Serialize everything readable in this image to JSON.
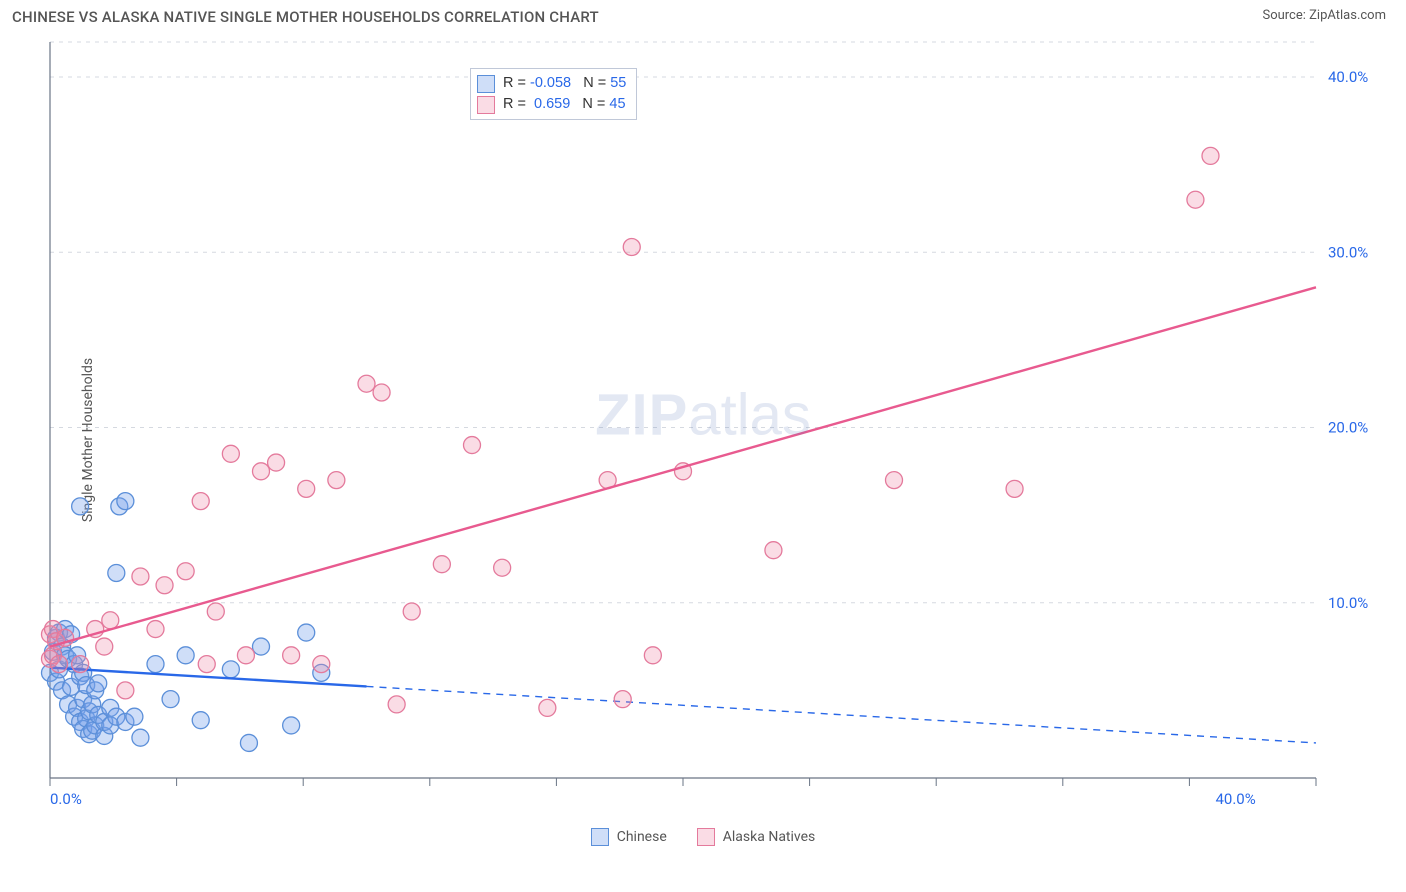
{
  "title": "CHINESE VS ALASKA NATIVE SINGLE MOTHER HOUSEHOLDS CORRELATION CHART",
  "source_label": "Source: ZipAtlas.com",
  "ylabel": "Single Mother Households",
  "watermark": {
    "strong": "ZIP",
    "rest": "atlas"
  },
  "chart": {
    "type": "scatter",
    "xlim": [
      0,
      42
    ],
    "ylim": [
      0,
      42
    ],
    "xtick_labels": {
      "0": "0.0%",
      "40": "40.0%"
    },
    "ytick_labels": [
      "10.0%",
      "20.0%",
      "30.0%",
      "40.0%"
    ],
    "ytick_values": [
      10,
      20,
      30,
      40
    ],
    "grid_x_values": [
      0,
      4.2,
      8.4,
      12.6,
      16.8,
      21.0,
      25.2,
      29.4,
      33.6,
      37.8,
      42.0
    ],
    "grid_color": "#d5d9e0",
    "axis_color": "#6a7485",
    "background_color": "#ffffff",
    "marker_radius": 8.5,
    "marker_stroke_width": 1.3,
    "series": [
      {
        "name": "Chinese",
        "fill": "rgba(118,161,234,0.35)",
        "stroke": "#5b8fd9",
        "points": [
          [
            0.0,
            6.0
          ],
          [
            0.1,
            7.2
          ],
          [
            0.2,
            5.5
          ],
          [
            0.2,
            8.0
          ],
          [
            0.3,
            8.3
          ],
          [
            0.3,
            6.2
          ],
          [
            0.4,
            7.5
          ],
          [
            0.4,
            5.0
          ],
          [
            0.5,
            7.0
          ],
          [
            0.5,
            8.5
          ],
          [
            0.6,
            6.8
          ],
          [
            0.6,
            4.2
          ],
          [
            0.7,
            5.2
          ],
          [
            0.7,
            8.2
          ],
          [
            0.8,
            3.5
          ],
          [
            0.8,
            6.5
          ],
          [
            0.9,
            4.0
          ],
          [
            0.9,
            7.0
          ],
          [
            1.0,
            5.8
          ],
          [
            1.0,
            3.2
          ],
          [
            1.0,
            15.5
          ],
          [
            1.1,
            2.8
          ],
          [
            1.1,
            4.5
          ],
          [
            1.1,
            6.0
          ],
          [
            1.2,
            3.4
          ],
          [
            1.2,
            5.3
          ],
          [
            1.3,
            2.5
          ],
          [
            1.3,
            3.8
          ],
          [
            1.4,
            4.2
          ],
          [
            1.4,
            2.7
          ],
          [
            1.5,
            5.0
          ],
          [
            1.5,
            3.0
          ],
          [
            1.6,
            3.6
          ],
          [
            1.6,
            5.4
          ],
          [
            1.8,
            2.4
          ],
          [
            1.8,
            3.2
          ],
          [
            2.0,
            3.0
          ],
          [
            2.0,
            4.0
          ],
          [
            2.2,
            11.7
          ],
          [
            2.2,
            3.5
          ],
          [
            2.3,
            15.5
          ],
          [
            2.5,
            15.8
          ],
          [
            2.5,
            3.2
          ],
          [
            2.8,
            3.5
          ],
          [
            3.0,
            2.3
          ],
          [
            3.5,
            6.5
          ],
          [
            4.0,
            4.5
          ],
          [
            4.5,
            7.0
          ],
          [
            5.0,
            3.3
          ],
          [
            6.0,
            6.2
          ],
          [
            6.6,
            2.0
          ],
          [
            7.0,
            7.5
          ],
          [
            8.0,
            3.0
          ],
          [
            8.5,
            8.3
          ],
          [
            9.0,
            6.0
          ]
        ],
        "regression": {
          "x1": 0.0,
          "y1": 6.3,
          "x2": 42.0,
          "y2": 2.0,
          "x_solid_end": 10.5
        },
        "line_color": "#2968e8"
      },
      {
        "name": "Alaska Natives",
        "fill": "rgba(238,140,170,0.30)",
        "stroke": "#e47a9c",
        "points": [
          [
            0.0,
            6.8
          ],
          [
            0.0,
            8.2
          ],
          [
            0.1,
            8.5
          ],
          [
            0.1,
            7.0
          ],
          [
            0.2,
            7.8
          ],
          [
            0.3,
            6.5
          ],
          [
            0.5,
            8.0
          ],
          [
            1.0,
            6.5
          ],
          [
            1.5,
            8.5
          ],
          [
            1.8,
            7.5
          ],
          [
            2.0,
            9.0
          ],
          [
            2.5,
            5.0
          ],
          [
            3.0,
            11.5
          ],
          [
            3.5,
            8.5
          ],
          [
            3.8,
            11.0
          ],
          [
            4.5,
            11.8
          ],
          [
            5.0,
            15.8
          ],
          [
            5.2,
            6.5
          ],
          [
            5.5,
            9.5
          ],
          [
            6.0,
            18.5
          ],
          [
            6.5,
            7.0
          ],
          [
            7.0,
            17.5
          ],
          [
            7.5,
            18.0
          ],
          [
            8.0,
            7.0
          ],
          [
            8.5,
            16.5
          ],
          [
            9.0,
            6.5
          ],
          [
            9.5,
            17.0
          ],
          [
            10.5,
            22.5
          ],
          [
            11.0,
            22.0
          ],
          [
            11.5,
            4.2
          ],
          [
            12.0,
            9.5
          ],
          [
            13.0,
            12.2
          ],
          [
            14.0,
            19.0
          ],
          [
            15.0,
            12.0
          ],
          [
            16.5,
            4.0
          ],
          [
            18.5,
            17.0
          ],
          [
            19.0,
            4.5
          ],
          [
            19.3,
            30.3
          ],
          [
            20.0,
            7.0
          ],
          [
            24.0,
            13.0
          ],
          [
            28.0,
            17.0
          ],
          [
            32.0,
            16.5
          ],
          [
            38.0,
            33.0
          ],
          [
            38.5,
            35.5
          ],
          [
            21.0,
            17.5
          ]
        ],
        "regression": {
          "x1": 0.0,
          "y1": 7.5,
          "x2": 42.0,
          "y2": 28.0,
          "x_solid_end": 42.0
        },
        "line_color": "#e85a8f"
      }
    ]
  },
  "stats_legend": [
    {
      "swatch_fill": "rgba(118,161,234,0.35)",
      "swatch_stroke": "#5b8fd9",
      "r": "-0.058",
      "n": "55"
    },
    {
      "swatch_fill": "rgba(238,140,170,0.30)",
      "swatch_stroke": "#e47a9c",
      "r": "0.659",
      "n": "45"
    }
  ],
  "bottom_legend": [
    {
      "swatch_fill": "rgba(118,161,234,0.35)",
      "swatch_stroke": "#5b8fd9",
      "label": "Chinese"
    },
    {
      "swatch_fill": "rgba(238,140,170,0.30)",
      "swatch_stroke": "#e47a9c",
      "label": "Alaska Natives"
    }
  ]
}
